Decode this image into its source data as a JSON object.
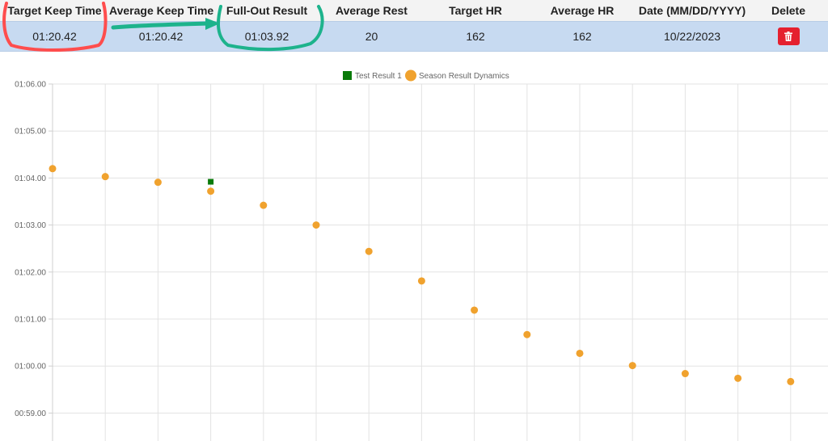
{
  "table": {
    "headers": [
      "Target Keep Time",
      "Average Keep Time",
      "Full-Out Result",
      "Average Rest",
      "Target HR",
      "Average HR",
      "Date (MM/DD/YYYY)",
      "Delete"
    ],
    "row": {
      "target_keep_time": "01:20.42",
      "average_keep_time": "01:20.42",
      "full_out_result": "01:03.92",
      "average_rest": "20",
      "target_hr": "162",
      "average_hr": "162",
      "date": "10/22/2023"
    },
    "delete_button": {
      "icon": "trash-icon",
      "color": "#e5202f"
    }
  },
  "annotations": {
    "red_circle_color": "#ff4d4d",
    "arrow_color": "#1db38c",
    "teal_circle_color": "#1db38c"
  },
  "chart_data": {
    "type": "scatter",
    "legend": {
      "position": "top-center",
      "entries": [
        "Test Result 1",
        "Season Result Dynamics"
      ]
    },
    "y_ticks": [
      "01:06.00",
      "01:05.00",
      "01:04.00",
      "01:03.00",
      "01:02.00",
      "01:01.00",
      "01:00.00",
      "00:59.00"
    ],
    "ylim_seconds": [
      58.6,
      66.0
    ],
    "grid": true,
    "series": [
      {
        "name": "Test Result 1",
        "marker": "square",
        "color": "#0a7a0a",
        "points": [
          {
            "x": 4,
            "y": 63.92
          }
        ]
      },
      {
        "name": "Season Result Dynamics",
        "marker": "circle",
        "color": "#f0a22e",
        "points": [
          {
            "x": 1,
            "y": 64.2
          },
          {
            "x": 2,
            "y": 64.03
          },
          {
            "x": 3,
            "y": 63.91
          },
          {
            "x": 4,
            "y": 63.72
          },
          {
            "x": 5,
            "y": 63.42
          },
          {
            "x": 6,
            "y": 63.0
          },
          {
            "x": 7,
            "y": 62.44
          },
          {
            "x": 8,
            "y": 61.81
          },
          {
            "x": 9,
            "y": 61.19
          },
          {
            "x": 10,
            "y": 60.67
          },
          {
            "x": 11,
            "y": 60.27
          },
          {
            "x": 12,
            "y": 60.01
          },
          {
            "x": 13,
            "y": 59.84
          },
          {
            "x": 14,
            "y": 59.74
          },
          {
            "x": 15,
            "y": 59.67
          }
        ]
      }
    ]
  }
}
